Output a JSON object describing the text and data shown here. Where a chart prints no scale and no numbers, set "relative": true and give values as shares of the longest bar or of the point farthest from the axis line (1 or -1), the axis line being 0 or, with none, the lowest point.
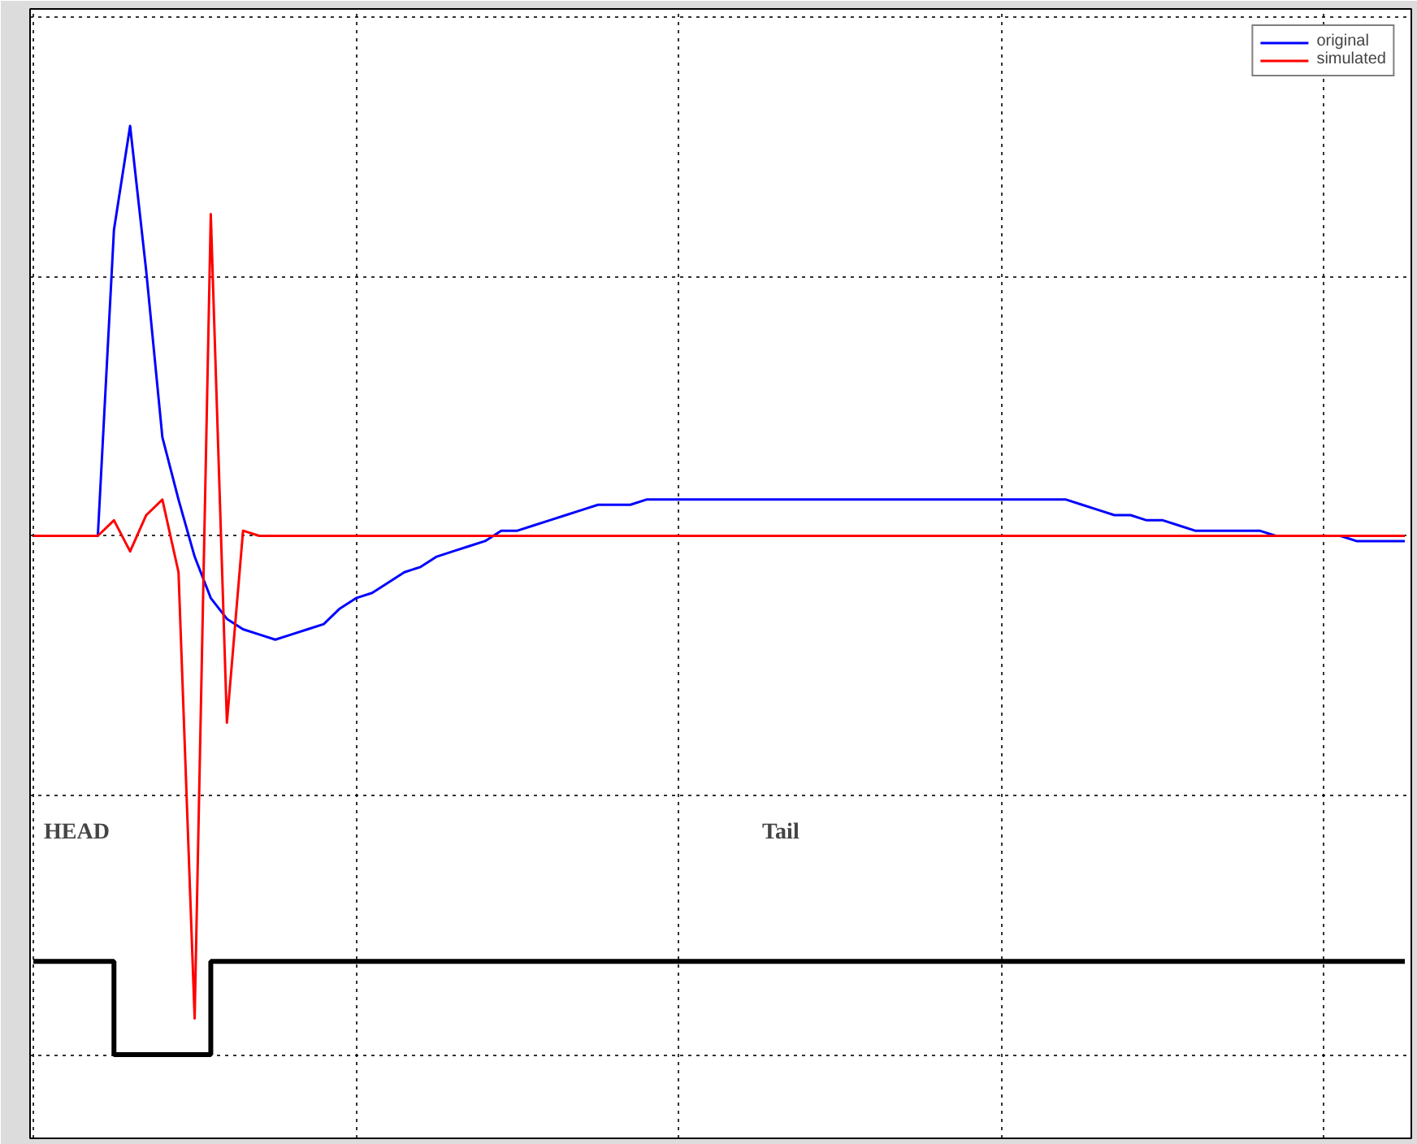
{
  "chart_data": {
    "type": "line",
    "relative": true,
    "grid": true,
    "legend": "top right",
    "categories": [
      null,
      null,
      null,
      null,
      null,
      null,
      null,
      null,
      null,
      null,
      null,
      null,
      null,
      null,
      null,
      null,
      null,
      null,
      null,
      null,
      null,
      null,
      null,
      null,
      null,
      null,
      null,
      null,
      null,
      null,
      null,
      null,
      null,
      null,
      null,
      null,
      null,
      null,
      null,
      null,
      null,
      null,
      null,
      null,
      null,
      null,
      null,
      null,
      null,
      null,
      null,
      null,
      null,
      null,
      null,
      null,
      null,
      null,
      null,
      null,
      null,
      null,
      null,
      null,
      null,
      null,
      null,
      null,
      null,
      null,
      null,
      null,
      null,
      null,
      null,
      null,
      null,
      null,
      null,
      null,
      null,
      null,
      null,
      null,
      null,
      null
    ],
    "series": [
      {
        "name": "original",
        "color": "#0000ff",
        "values": [
          null,
          null,
          null,
          0,
          0,
          0.59,
          0.79,
          0.51,
          0.19,
          0.07,
          -0.04,
          -0.12,
          -0.16,
          -0.18,
          -0.19,
          -0.2,
          -0.19,
          -0.18,
          -0.17,
          -0.14,
          -0.12,
          -0.11,
          -0.09,
          -0.07,
          -0.06,
          -0.04,
          -0.03,
          -0.02,
          -0.01,
          0.01,
          0.01,
          0.02,
          0.03,
          0.04,
          0.05,
          0.06,
          0.06,
          0.06,
          0.07,
          0.07,
          0.07,
          0.07,
          0.07,
          0.07,
          0.07,
          0.07,
          0.07,
          0.07,
          0.07,
          0.07,
          0.07,
          0.07,
          0.07,
          0.07,
          0.07,
          0.07,
          0.07,
          0.07,
          0.07,
          0.07,
          0.07,
          0.07,
          0.07,
          0.07,
          0.07,
          0.06,
          0.05,
          0.04,
          0.04,
          0.03,
          0.03,
          0.02,
          0.01,
          0.01,
          0.01,
          0.01,
          0.01,
          0,
          0,
          0,
          0,
          0,
          -0.01,
          -0.01,
          -0.01,
          -0.01
        ]
      },
      {
        "name": "simulated",
        "color": "#ff0000",
        "values": [
          0,
          0,
          0,
          0,
          0,
          0.03,
          -0.03,
          0.04,
          0.07,
          -0.07,
          -0.93,
          0.62,
          -0.36,
          0.01,
          0,
          0,
          0,
          0,
          0,
          0,
          0,
          0,
          0,
          0,
          0,
          0,
          0,
          0,
          0,
          0,
          0,
          0,
          0,
          0,
          0,
          0,
          0,
          0,
          0,
          0,
          0,
          0,
          0,
          0,
          0,
          0,
          0,
          0,
          0,
          0,
          0,
          0,
          0,
          0,
          0,
          0,
          0,
          0,
          0,
          0,
          0,
          0,
          0,
          0,
          0,
          0,
          0,
          0,
          0,
          0,
          0,
          0,
          0,
          0,
          0,
          0,
          0,
          0,
          0,
          0,
          0,
          0,
          0,
          0,
          0,
          0
        ]
      },
      {
        "type": "step",
        "color": "#000000",
        "values": [
          -0.82,
          -0.82,
          -0.82,
          -0.82,
          -0.82,
          -1,
          -1,
          -1,
          -1,
          -1,
          -1,
          -0.82,
          -0.82,
          -0.82,
          -0.82,
          -0.82,
          -0.82,
          -0.82,
          -0.82,
          -0.82,
          -0.82,
          -0.82,
          -0.82,
          -0.82,
          -0.82,
          -0.82,
          -0.82,
          -0.82,
          -0.82,
          -0.82,
          -0.82,
          -0.82,
          -0.82,
          -0.82,
          -0.82,
          -0.82,
          -0.82,
          -0.82,
          -0.82,
          -0.82,
          -0.82,
          -0.82,
          -0.82,
          -0.82,
          -0.82,
          -0.82,
          -0.82,
          -0.82,
          -0.82,
          -0.82,
          -0.82,
          -0.82,
          -0.82,
          -0.82,
          -0.82,
          -0.82,
          -0.82,
          -0.82,
          -0.82,
          -0.82,
          -0.82,
          -0.82,
          -0.82,
          -0.82,
          -0.82,
          -0.82,
          -0.82,
          -0.82,
          -0.82,
          -0.82,
          -0.82,
          -0.82,
          -0.82,
          -0.82,
          -0.82,
          -0.82,
          -0.82,
          -0.82,
          -0.82,
          -0.82,
          -0.82,
          -0.82,
          -0.82,
          -0.82,
          -0.82,
          -0.82
        ]
      }
    ],
    "annotations": [
      "HEAD",
      "Tail"
    ]
  }
}
